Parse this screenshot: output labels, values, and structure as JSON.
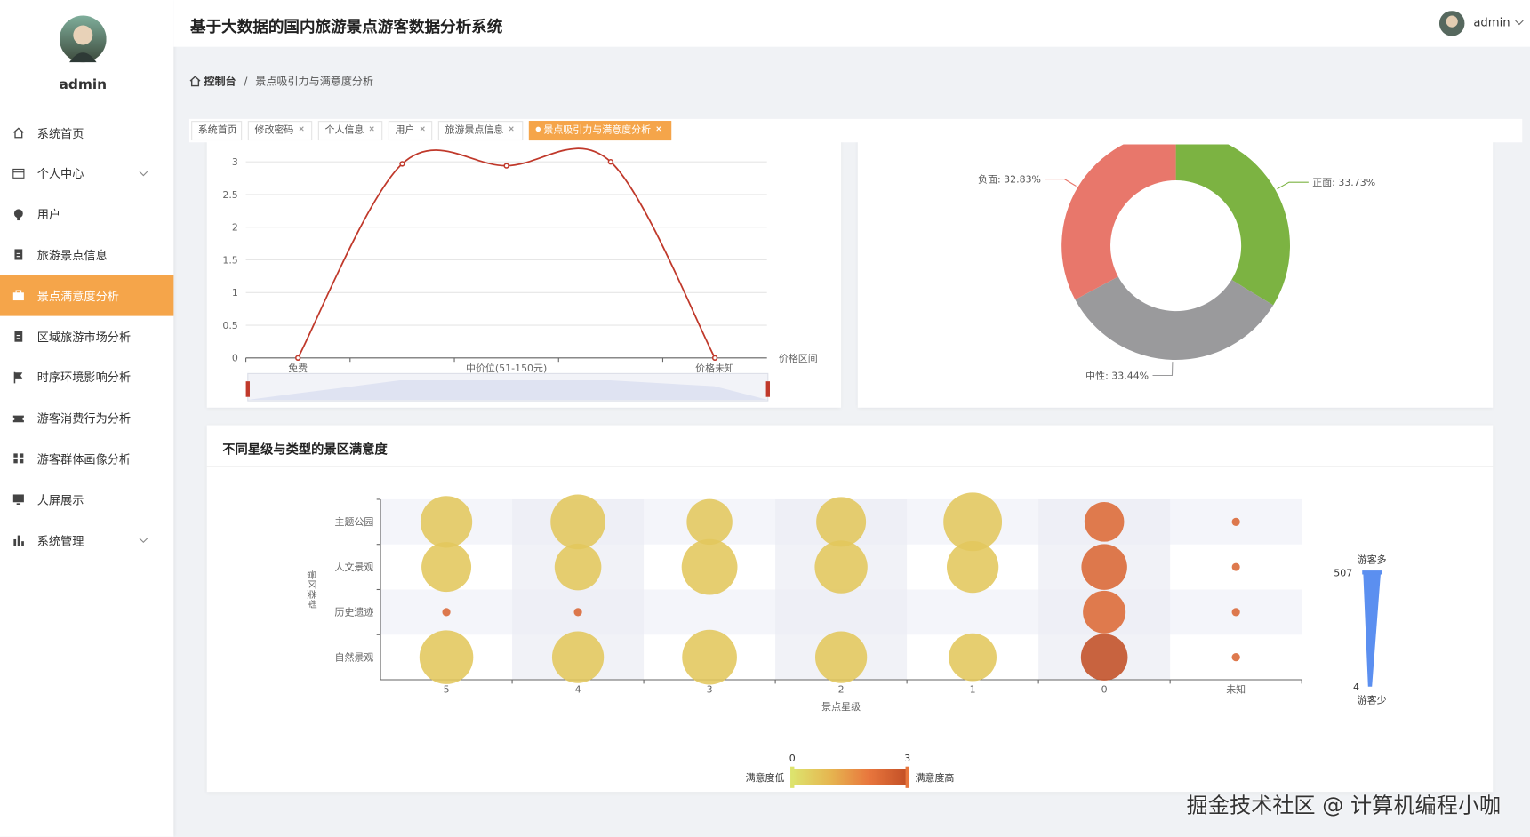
{
  "sidebar": {
    "user": "admin",
    "menu": [
      {
        "label": "系统首页",
        "icon": "home"
      },
      {
        "label": "个人中心",
        "icon": "card",
        "has_children": true
      },
      {
        "label": "用户",
        "icon": "bulb"
      },
      {
        "label": "旅游景点信息",
        "icon": "doc"
      },
      {
        "label": "景点满意度分析",
        "icon": "case",
        "active": true
      },
      {
        "label": "区域旅游市场分析",
        "icon": "doc"
      },
      {
        "label": "时序环境影响分析",
        "icon": "flag"
      },
      {
        "label": "游客消费行为分析",
        "icon": "ticket"
      },
      {
        "label": "游客群体画像分析",
        "icon": "grid"
      },
      {
        "label": "大屏展示",
        "icon": "screen"
      },
      {
        "label": "系统管理",
        "icon": "bars",
        "has_children": true
      }
    ]
  },
  "header": {
    "title": "基于大数据的国内旅游景点游客数据分析系统",
    "user": "admin"
  },
  "breadcrumb": {
    "home": "控制台",
    "separator": "/",
    "current": "景点吸引力与满意度分析"
  },
  "tabs": [
    {
      "label": "系统首页"
    },
    {
      "label": "修改密码",
      "closable": true
    },
    {
      "label": "个人信息",
      "closable": true
    },
    {
      "label": "用户",
      "closable": true
    },
    {
      "label": "旅游景点信息",
      "closable": true
    },
    {
      "label": "景点吸引力与满意度分析",
      "closable": true,
      "active": true
    }
  ],
  "line_chart": {
    "type": "line",
    "categories": [
      "免费",
      null,
      "中价位(51-150元)",
      null,
      "价格未知"
    ],
    "values": [
      0,
      2.97,
      2.94,
      3.0,
      0
    ],
    "color": "#c0392b",
    "smooth": true,
    "x_axis_name": "价格区间",
    "ylim": [
      0,
      3
    ],
    "yticks": [
      0,
      0.5,
      1,
      1.5,
      2,
      2.5,
      3
    ],
    "grid": true
  },
  "pie_chart": {
    "type": "pie",
    "donut": true,
    "values": [
      33.73,
      33.44,
      32.83
    ],
    "value_labels": [
      "正面: 33.73%",
      "中性: 33.44%",
      "负面: 32.83%"
    ],
    "colors": [
      "#7cb342",
      "#9a9a9c",
      "#e8776b"
    ]
  },
  "bubble_chart": {
    "type": "bubble",
    "title": "不同星级与类型的景区满意度",
    "x_categories": [
      "5",
      "4",
      "3",
      "2",
      "1",
      "0",
      "未知"
    ],
    "y_categories": [
      "主题公园",
      "人文景观",
      "历史遗迹",
      "自然景观"
    ],
    "x_axis_name": "景点星级",
    "y_axis_name": "景区类型",
    "satisfaction": [
      [
        0.6,
        0.6,
        0.6,
        0.6,
        0.6,
        2.3,
        2.4
      ],
      [
        0.6,
        0.6,
        0.6,
        0.6,
        0.6,
        2.4,
        2.4
      ],
      [
        2.4,
        2.4,
        null,
        null,
        null,
        2.3,
        2.4
      ],
      [
        0.6,
        0.6,
        0.6,
        0.6,
        0.6,
        3,
        2.4
      ]
    ],
    "visitors": [
      [
        440,
        470,
        380,
        420,
        507,
        320,
        8
      ],
      [
        420,
        390,
        480,
        450,
        440,
        380,
        6
      ],
      [
        8,
        8,
        null,
        null,
        null,
        350,
        8
      ],
      [
        460,
        440,
        470,
        440,
        400,
        390,
        8
      ]
    ],
    "color_map": {
      "min": 0,
      "max": 3,
      "text_low": "满意度低",
      "text_high": "满意度高",
      "colors": [
        "#dde36d",
        "#e6b550",
        "#e8763d",
        "#c24f26"
      ]
    },
    "size_map": {
      "min": 4,
      "max": 507,
      "text_high": "游客多",
      "text_low": "游客少",
      "color": "#5b8ff0"
    }
  },
  "watermark": "掘金技术社区 @ 计算机编程小咖"
}
